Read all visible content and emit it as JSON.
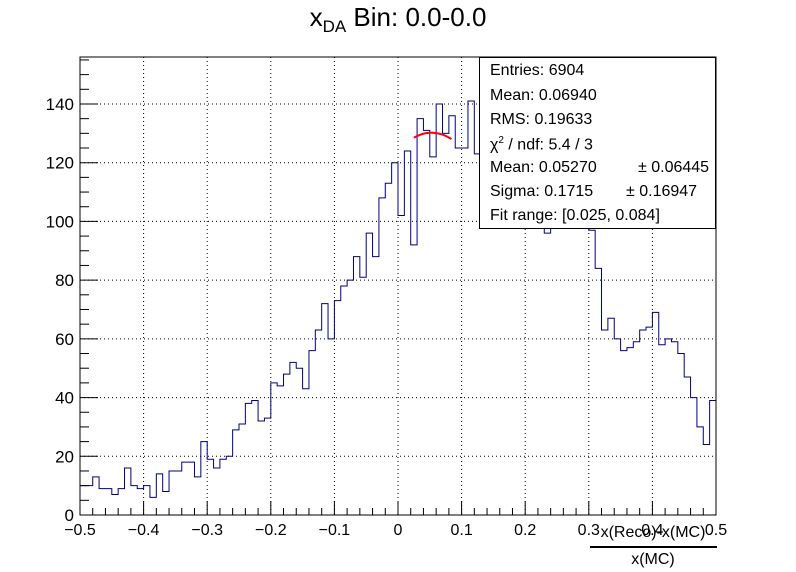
{
  "title": {
    "main": "x",
    "sub": "DA",
    "suffix": " Bin: 0.0-0.0"
  },
  "stats": {
    "entries": "Entries: 6904",
    "mean": "Mean: 0.06940",
    "rms": "RMS: 0.19633",
    "chi2_prefix": "χ",
    "chi2_sup": "2",
    "chi2_suffix": " / ndf: 5.4 / 3",
    "fit_mean": "Mean: 0.05270",
    "fit_mean_err": "± 0.06445",
    "sigma": "Sigma: 0.1715",
    "sigma_err": "± 0.16947",
    "fit_range": "Fit range: [0.025, 0.084]"
  },
  "xlabel": {
    "numerator": "x(Reco)-x(MC)",
    "denominator": "x(MC)"
  },
  "chart_data": {
    "type": "bar",
    "subtype": "histogram-step",
    "xlim": [
      -0.5,
      0.5
    ],
    "ylim": [
      0,
      156
    ],
    "x_ticks": [
      "−0.5",
      "−0.4",
      "−0.3",
      "−0.2",
      "−0.1",
      "0",
      "0.1",
      "0.2",
      "0.3",
      "0.4",
      "0.5"
    ],
    "x_tick_values": [
      -0.5,
      -0.4,
      -0.3,
      -0.2,
      -0.1,
      0,
      0.1,
      0.2,
      0.3,
      0.4,
      0.5
    ],
    "y_ticks": [
      "0",
      "20",
      "40",
      "60",
      "80",
      "100",
      "120",
      "140"
    ],
    "y_tick_values": [
      0,
      20,
      40,
      60,
      80,
      100,
      120,
      140
    ],
    "grid": true,
    "line_color": "#000080",
    "fit_color": "#ff0000",
    "bins": 100,
    "values": [
      10,
      10,
      13,
      9,
      9,
      7,
      9,
      16,
      10,
      9,
      10,
      6,
      14,
      8,
      15,
      15,
      18,
      18,
      13,
      25,
      19,
      16,
      19,
      20,
      29,
      31,
      38,
      39,
      32,
      33,
      45,
      44,
      48,
      52,
      50,
      43,
      56,
      63,
      72,
      60,
      73,
      78,
      80,
      88,
      81,
      96,
      88,
      108,
      113,
      120,
      102,
      124,
      92,
      135,
      131,
      122,
      140,
      130,
      136,
      125,
      125,
      141,
      123,
      138,
      128,
      126,
      122,
      121,
      115,
      119,
      119,
      112,
      117,
      96,
      108,
      100,
      98,
      110,
      102,
      107,
      97,
      84,
      63,
      67,
      60,
      56,
      57,
      59,
      63,
      64,
      69,
      58,
      60,
      59,
      55,
      47,
      40,
      30,
      24,
      39
    ],
    "fit": {
      "function": "gaus",
      "range": [
        0.025,
        0.084
      ],
      "constant": 130.2,
      "mean": 0.0527,
      "sigma": 0.1715
    }
  }
}
